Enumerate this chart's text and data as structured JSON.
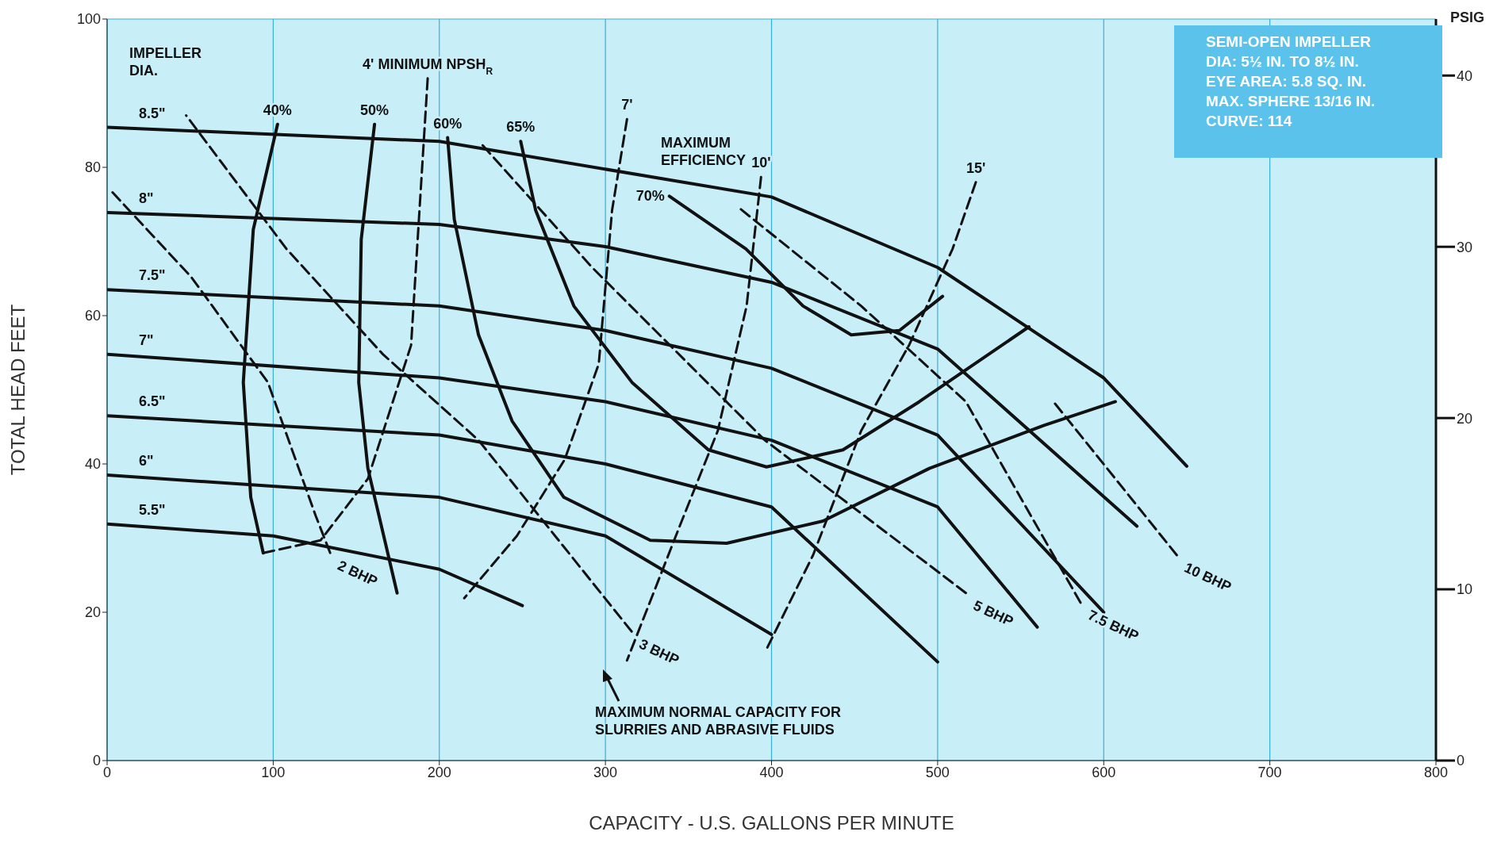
{
  "chart_data": {
    "type": "line",
    "xlabel": "CAPACITY - U.S. GALLONS PER MINUTE",
    "ylabel": "TOTAL HEAD FEET",
    "y2label": "PSIG",
    "xlim": [
      0,
      800
    ],
    "xticks": [
      0,
      100,
      200,
      300,
      400,
      500,
      600,
      700,
      800
    ],
    "ylim": [
      0,
      100
    ],
    "yticks": [
      0,
      20,
      40,
      60,
      80,
      100
    ],
    "y2lim": [
      0,
      43.3
    ],
    "y2ticks": [
      0,
      10,
      20,
      30,
      40
    ],
    "grid": true,
    "legend": false,
    "marker": "none",
    "series": [
      {
        "name": "8.5\"",
        "color": "#111111",
        "line_style": "solid",
        "x": [
          0,
          200,
          400,
          500,
          600,
          650
        ],
        "values": [
          85.4,
          83.5,
          76,
          66.5,
          51.6,
          39.7
        ]
      },
      {
        "name": "8\"",
        "color": "#111111",
        "line_style": "solid",
        "x": [
          0,
          200,
          300,
          400,
          500,
          620
        ],
        "values": [
          73.9,
          72.3,
          69.3,
          64.5,
          55.5,
          31.6
        ]
      },
      {
        "name": "7.5\"",
        "color": "#111111",
        "line_style": "solid",
        "x": [
          0,
          200,
          300,
          400,
          500,
          600
        ],
        "values": [
          63.5,
          61.3,
          58,
          52.9,
          43.9,
          20
        ]
      },
      {
        "name": "7\"",
        "color": "#111111",
        "line_style": "solid",
        "x": [
          0,
          200,
          300,
          400,
          500,
          560
        ],
        "values": [
          54.8,
          51.6,
          48.4,
          43.2,
          34.2,
          18
        ]
      },
      {
        "name": "6.5\"",
        "color": "#111111",
        "line_style": "solid",
        "x": [
          0,
          200,
          300,
          400,
          500
        ],
        "values": [
          46.5,
          43.9,
          40,
          34.2,
          13.3
        ]
      },
      {
        "name": "6\"",
        "color": "#111111",
        "line_style": "solid",
        "x": [
          0,
          200,
          300,
          400
        ],
        "values": [
          38.5,
          35.5,
          30.3,
          17
        ]
      },
      {
        "name": "5.5\"",
        "color": "#111111",
        "line_style": "solid",
        "x": [
          0,
          100,
          200,
          250
        ],
        "values": [
          31.9,
          30.3,
          25.8,
          20.9
        ]
      },
      {
        "name": "40%",
        "color": "#111111",
        "line_style": "solid",
        "x": [
          102.6,
          88,
          82,
          86.5,
          94
        ],
        "values": [
          85.8,
          71.6,
          51,
          35.5,
          28
        ]
      },
      {
        "name": "50%",
        "color": "#111111",
        "line_style": "solid",
        "x": [
          161,
          153,
          151.5,
          157,
          174.6
        ],
        "values": [
          85.8,
          70.3,
          51,
          39.4,
          22.6
        ]
      },
      {
        "name": "60%",
        "color": "#111111",
        "line_style": "solid",
        "x": [
          205,
          209,
          223.6,
          243.8,
          275,
          327,
          373,
          431,
          495,
          564,
          607
        ],
        "values": [
          84,
          73,
          57.4,
          45.8,
          35.5,
          29.7,
          29.3,
          32.3,
          39.4,
          45.2,
          48.4
        ]
      },
      {
        "name": "65%",
        "color": "#111111",
        "line_style": "solid",
        "x": [
          249,
          258,
          281,
          316,
          362,
          397,
          443,
          489,
          555
        ],
        "values": [
          83.5,
          74.2,
          61.3,
          51,
          41.9,
          39.6,
          41.9,
          48.4,
          58.5
        ]
      },
      {
        "name": "70%",
        "color": "#111111",
        "line_style": "solid",
        "x": [
          338.5,
          384.6,
          419,
          448,
          477,
          503
        ],
        "values": [
          76.1,
          69,
          61.3,
          57.4,
          58,
          62.6
        ]
      },
      {
        "name": "4' MINIMUM NPSH$_{R}$",
        "color": "#111111",
        "line_style": "dashed",
        "x": [
          193,
          183,
          157,
          128.5,
          94
        ],
        "values": [
          92,
          56,
          38,
          29.7,
          28
        ]
      },
      {
        "name": "7'",
        "color": "#111111",
        "line_style": "dashed",
        "x": [
          313,
          304,
          296,
          275.5,
          246.7,
          215
        ],
        "values": [
          86.5,
          74.2,
          53.5,
          40.6,
          30.3,
          21.9
        ]
      },
      {
        "name": "10'",
        "color": "#111111",
        "line_style": "dashed",
        "x": [
          393.7,
          385,
          367.7,
          344.7,
          313
        ],
        "values": [
          78.7,
          61.3,
          44.5,
          31.6,
          13.5
        ]
      },
      {
        "name": "15'",
        "color": "#111111",
        "line_style": "dashed",
        "x": [
          523,
          509,
          483,
          454,
          425,
          396.5
        ],
        "values": [
          78,
          69,
          56.1,
          44.5,
          27.7,
          14.8
        ]
      },
      {
        "name": "2 BHP",
        "color": "#111111",
        "line_style": "dashed",
        "x": [
          134.3,
          125.6,
          96.8,
          50.7,
          1.7
        ],
        "values": [
          28,
          33,
          51,
          65.2,
          77
        ]
      },
      {
        "name": "3 BHP",
        "color": "#111111",
        "line_style": "dashed",
        "x": [
          315.8,
          269.7,
          223.6,
          166,
          108,
          47.6
        ],
        "values": [
          17.4,
          30.3,
          43.2,
          54.8,
          69,
          87
        ]
      },
      {
        "name": "5 BHP",
        "color": "#111111",
        "line_style": "dashed",
        "x": [
          517,
          396,
          292,
          226
        ],
        "values": [
          22.6,
          43.2,
          66.5,
          83
        ]
      },
      {
        "name": "7.5 BHP",
        "color": "#111111",
        "line_style": "dashed",
        "x": [
          586,
          517,
          454,
          379
        ],
        "values": [
          21.3,
          48.4,
          61.3,
          74.8
        ]
      },
      {
        "name": "10 BHP",
        "color": "#111111",
        "line_style": "dashed",
        "x": [
          644,
          569
        ],
        "values": [
          27.7,
          48.6
        ]
      }
    ],
    "annotations": [
      "IMPELLER\nDIA.",
      "MAXIMUM\nEFFICIENCY",
      "MAXIMUM NORMAL CAPACITY FOR\nSLURRIES AND ABRASIVE FLUIDS",
      "SEMI-OPEN IMPELLER\nDIA: 5½ IN. TO 8½ IN.\nEYE AREA: 5.8 SQ. IN.\nMAX. SPHERE 13/16 IN.\nCURVE: 114"
    ]
  }
}
